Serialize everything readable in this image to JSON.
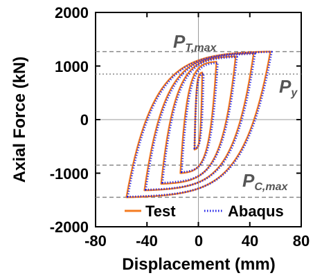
{
  "chart_data": {
    "type": "line",
    "xlabel": "Displacement (mm)",
    "ylabel": "Axial Force (kN)",
    "xlim": [
      -80,
      80
    ],
    "ylim": [
      -2000,
      2000
    ],
    "xticks": [
      -80,
      -40,
      0,
      40,
      80
    ],
    "yticks": [
      -2000,
      -1000,
      0,
      1000,
      2000
    ],
    "tick_labels": {
      "x": [
        "-80",
        "-40",
        "0",
        "40",
        "80"
      ],
      "y": [
        "-2000",
        "-1000",
        "0",
        "1000",
        "2000"
      ]
    },
    "reference_lines": [
      {
        "y": 1270,
        "style": "dashed",
        "color": "#888888"
      },
      {
        "y": 850,
        "style": "dotted",
        "color": "#888888"
      },
      {
        "y": -850,
        "style": "dashed",
        "color": "#888888"
      },
      {
        "y": -1450,
        "style": "dashed",
        "color": "#888888"
      }
    ],
    "annotations": {
      "p_t_max": {
        "main": "P",
        "sub": "T,max"
      },
      "p_y": {
        "main": "P",
        "sub": "y"
      },
      "p_c_max": {
        "main": "P",
        "sub": "C,max"
      }
    },
    "legend_position": "bottom-center",
    "series": [
      {
        "name": "Test",
        "color": "#F47B20",
        "style": "solid",
        "loops": [
          {
            "xmin": -3,
            "xmax": 3,
            "ymin": -560,
            "ymax": 880
          },
          {
            "xmin": -14,
            "xmax": 14,
            "ymin": -1000,
            "ymax": 1080
          },
          {
            "xmin": -29,
            "xmax": 29,
            "ymin": -1200,
            "ymax": 1180
          },
          {
            "xmin": -42,
            "xmax": 43,
            "ymin": -1320,
            "ymax": 1240
          },
          {
            "xmin": -56,
            "xmax": 56,
            "ymin": -1450,
            "ymax": 1270
          }
        ]
      },
      {
        "name": "Abaqus",
        "color": "#1A1AE6",
        "style": "dotted",
        "loops": [
          {
            "xmin": -3,
            "xmax": 4,
            "ymin": -540,
            "ymax": 860
          },
          {
            "xmin": -13,
            "xmax": 15,
            "ymin": -980,
            "ymax": 1060
          },
          {
            "xmin": -28,
            "xmax": 30,
            "ymin": -1180,
            "ymax": 1170
          },
          {
            "xmin": -41,
            "xmax": 44,
            "ymin": -1310,
            "ymax": 1230
          },
          {
            "xmin": -55,
            "xmax": 57,
            "ymin": -1440,
            "ymax": 1265
          }
        ]
      }
    ]
  }
}
